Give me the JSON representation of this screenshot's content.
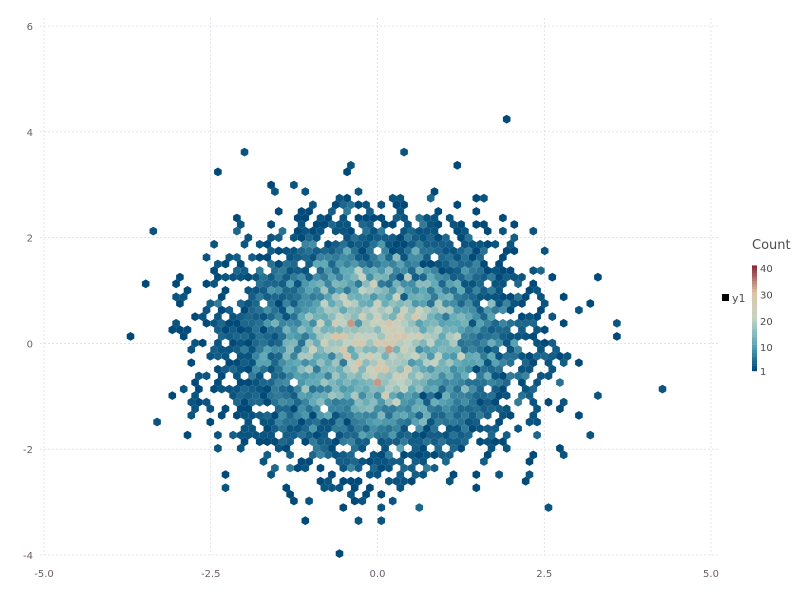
{
  "chart_data": {
    "type": "hexbin",
    "title": "",
    "xlabel": "",
    "ylabel": "",
    "xlim": [
      -5,
      5
    ],
    "ylim": [
      -4,
      6
    ],
    "x_ticks": [
      -5.0,
      -2.5,
      0.0,
      2.5,
      5.0
    ],
    "x_tick_labels": [
      "-5.0",
      "-2.5",
      "0.0",
      "2.5",
      "5.0"
    ],
    "y_ticks": [
      -4,
      -2,
      0,
      2,
      4,
      6
    ],
    "y_tick_labels": [
      "-4",
      "-2",
      "0",
      "2",
      "4",
      "6"
    ],
    "grid": true,
    "legend": {
      "position": "right",
      "series": [
        {
          "name": "y1",
          "color": "#000000"
        }
      ]
    },
    "colorbar": {
      "title": "Count",
      "range": [
        1,
        40
      ],
      "ticks": [
        1,
        10,
        20,
        30,
        40
      ],
      "tick_labels": [
        "1",
        "10",
        "20",
        "30",
        "40"
      ],
      "colors": [
        "#004a7a",
        "#5fa9b6",
        "#c4d3c3",
        "#dcc4a5",
        "#8a2a3b"
      ]
    },
    "distribution": "approximately bivariate standard normal centered at (0, 0)"
  }
}
